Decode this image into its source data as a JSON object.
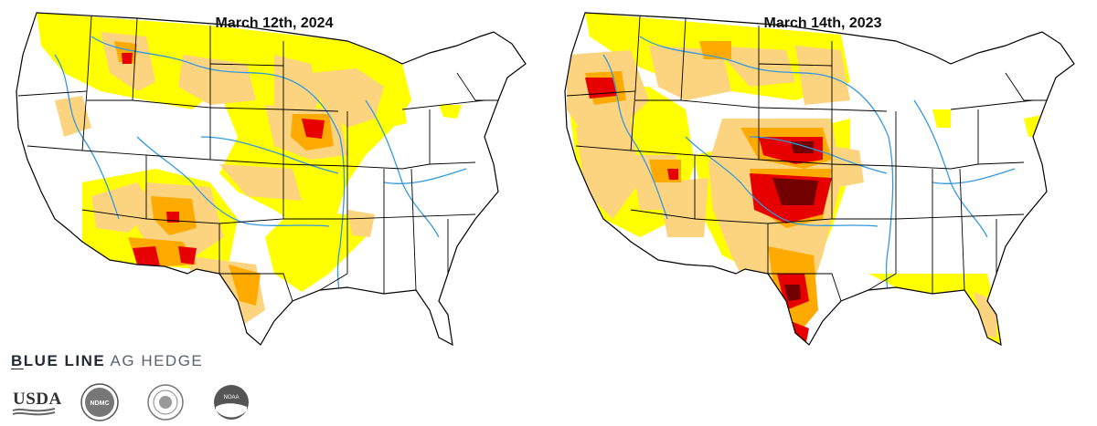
{
  "maps": [
    {
      "title": "March 12th, 2024"
    },
    {
      "title": "March 14th, 2023"
    }
  ],
  "colors": {
    "d0_abnormally_dry": "#ffff00",
    "d1_moderate": "#fcd37f",
    "d2_severe": "#ffaa00",
    "d3_extreme": "#e60000",
    "d4_exceptional": "#730000",
    "rivers": "#3399dd",
    "borders": "#000000"
  },
  "brand": {
    "name_strong": "BLUE LINE",
    "name_light": "AG HEDGE"
  },
  "logos": [
    {
      "icon": "usda-logo",
      "text": "USDA"
    },
    {
      "icon": "ndmc-logo",
      "text": "NDMC"
    },
    {
      "icon": "doc-seal-logo"
    },
    {
      "icon": "noaa-logo",
      "text": "NOAA"
    }
  ]
}
